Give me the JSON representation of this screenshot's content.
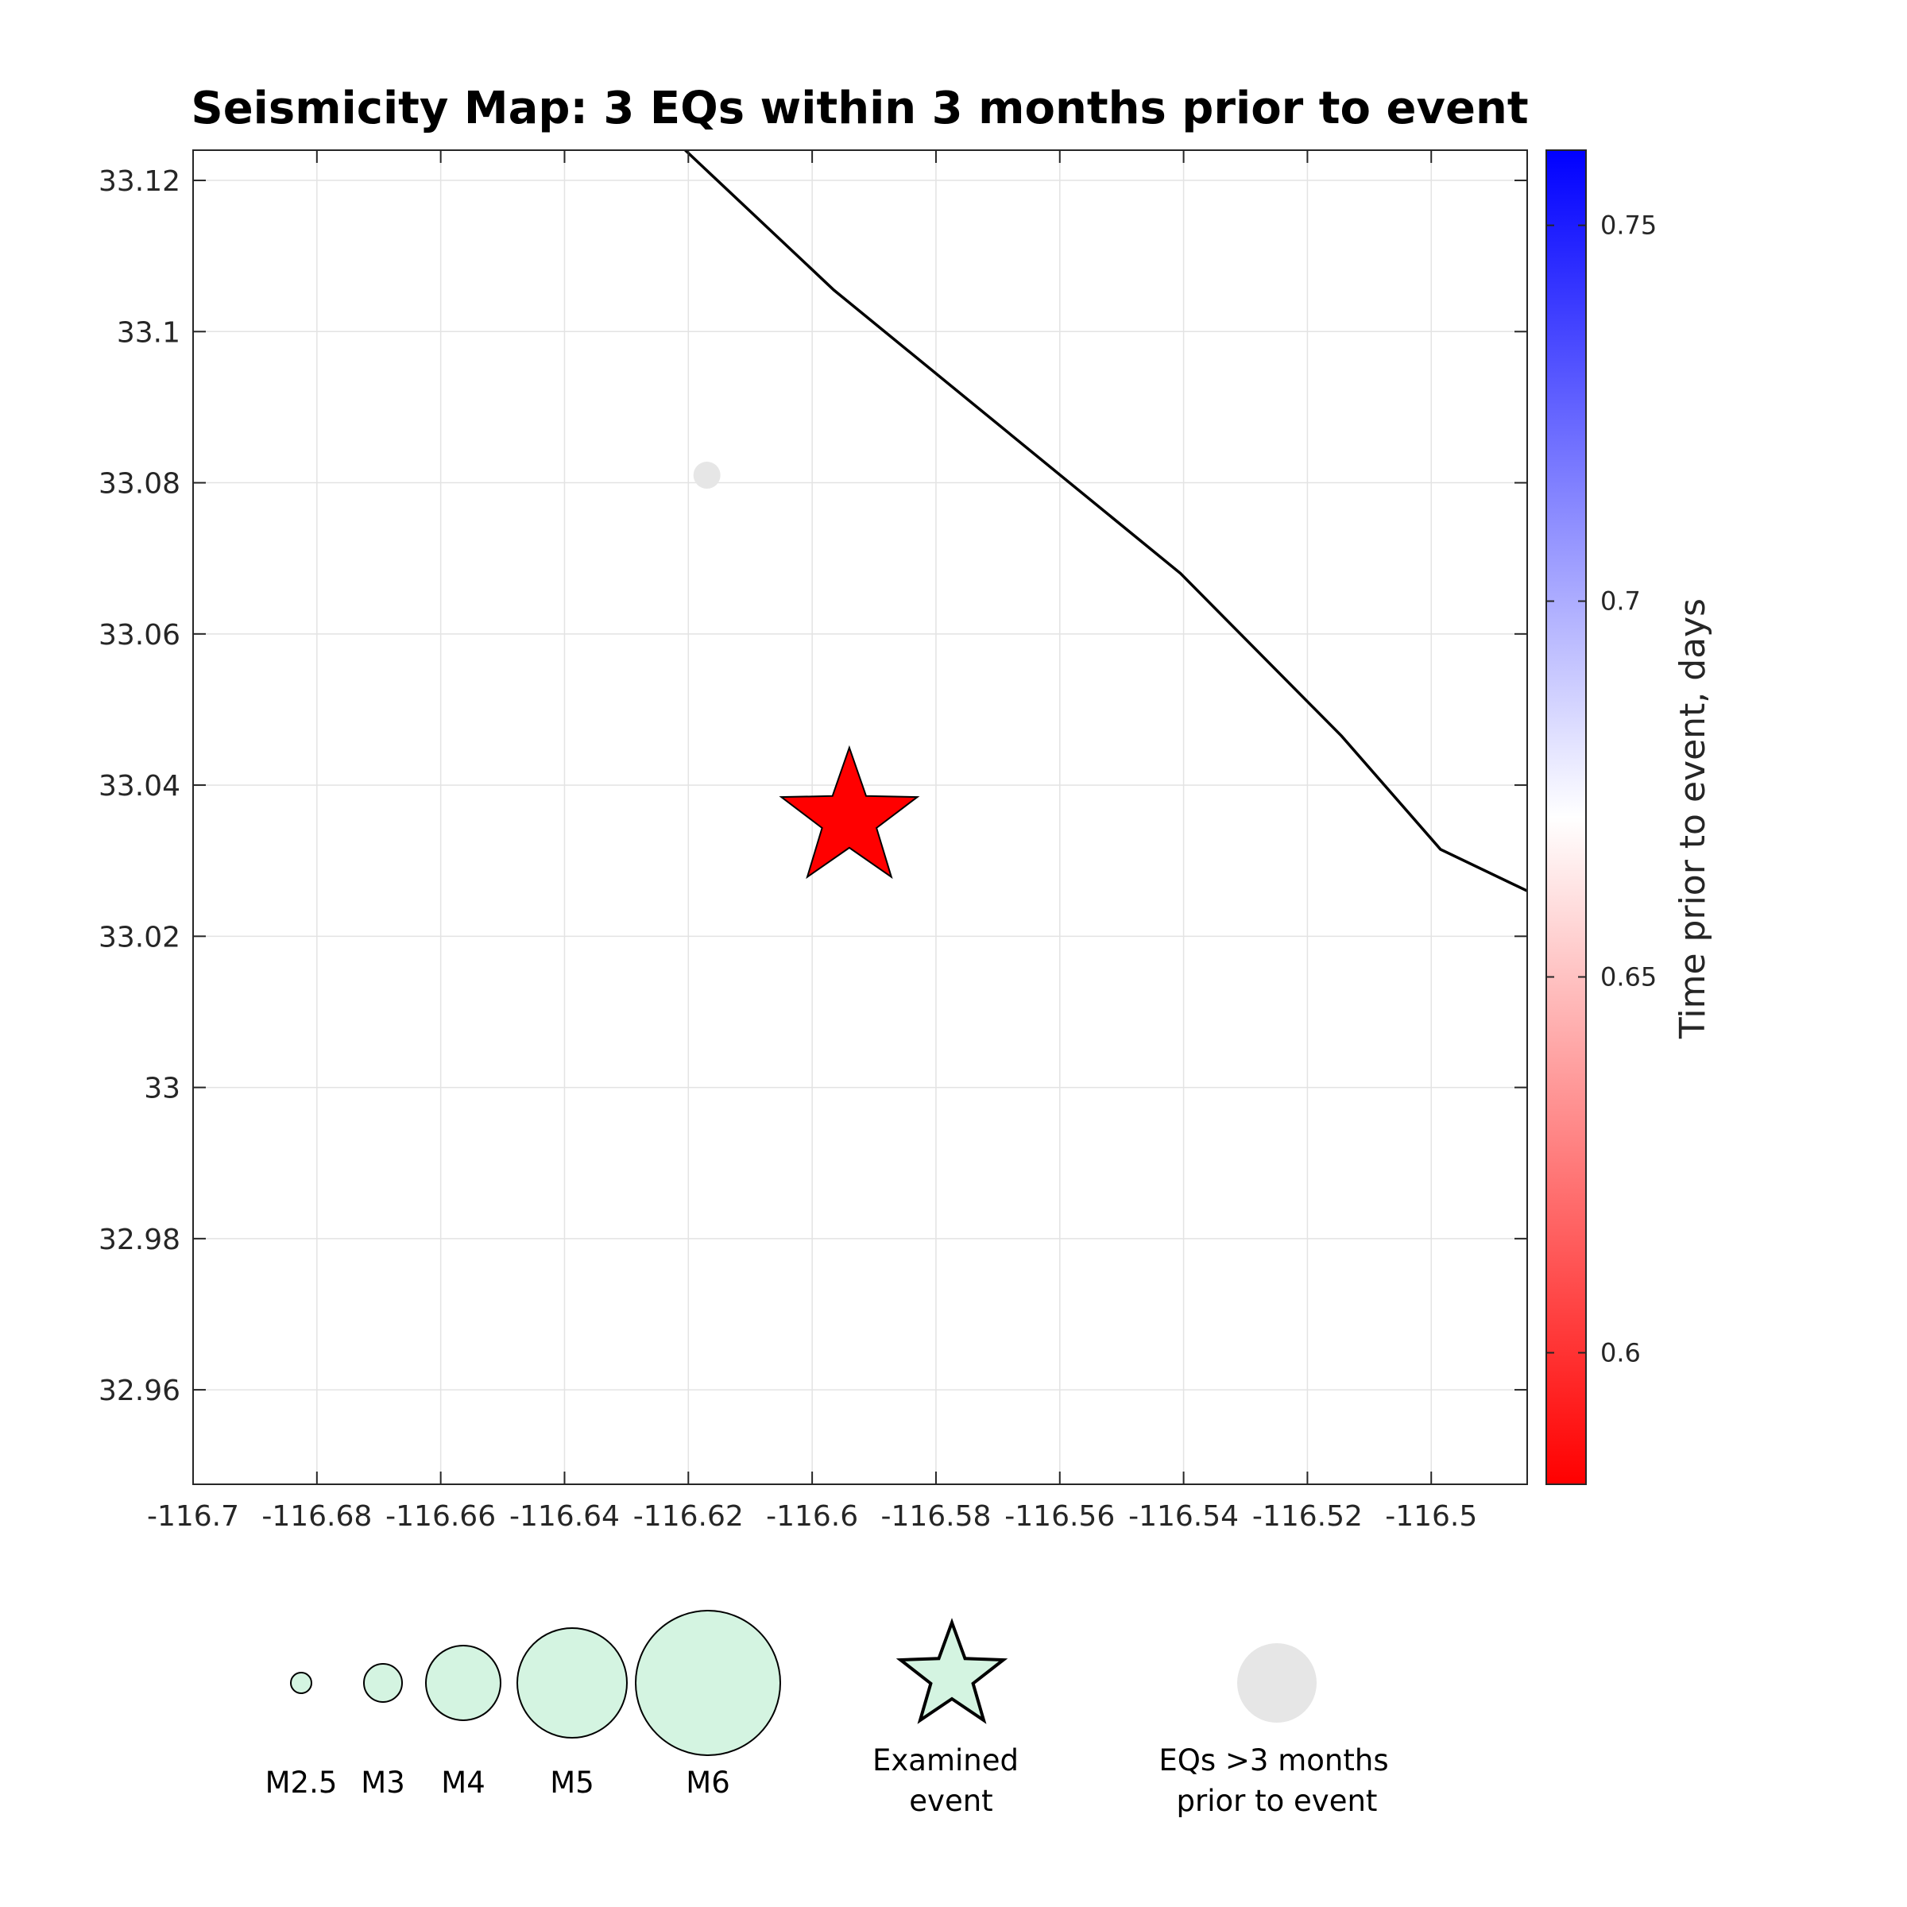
{
  "chart_data": {
    "type": "scatter",
    "title": "Seismicity Map: 3 EQs within 3 months prior to event",
    "xlabel": "",
    "ylabel": "",
    "xlim": [
      -116.7,
      -116.4845
    ],
    "ylim": [
      32.9475,
      33.124
    ],
    "xticks": [
      -116.7,
      -116.68,
      -116.66,
      -116.64,
      -116.62,
      -116.6,
      -116.58,
      -116.56,
      -116.54,
      -116.52,
      -116.5
    ],
    "xtick_labels": [
      "-116.7",
      "-116.68",
      "-116.66",
      "-116.64",
      "-116.62",
      "-116.6",
      "-116.58",
      "-116.56",
      "-116.54",
      "-116.52",
      "-116.5"
    ],
    "yticks": [
      32.96,
      32.98,
      33.0,
      33.02,
      33.04,
      33.06,
      33.08,
      33.1,
      33.12
    ],
    "ytick_labels": [
      "32.96",
      "32.98",
      "33",
      "33.02",
      "33.04",
      "33.06",
      "33.08",
      "33.1",
      "33.12"
    ],
    "grid": true,
    "fault_line": {
      "x": [
        -116.6205,
        -116.5965,
        -116.5405,
        -116.5145,
        -116.4985,
        -116.4845
      ],
      "y": [
        33.124,
        33.1055,
        33.068,
        33.0465,
        33.0315,
        33.026
      ]
    },
    "series": [
      {
        "marker": "circle",
        "points": [
          {
            "x": -116.5945,
            "y": 33.0345,
            "time_days": 0.755,
            "color": "#0a14ff"
          }
        ]
      },
      {
        "marker": "circle",
        "points": [
          {
            "x": -116.617,
            "y": 33.081,
            "color": "#e6e6e6"
          }
        ]
      },
      {
        "marker": "star",
        "points": [
          {
            "x": -116.594,
            "y": 33.0355,
            "color": "#ff0000"
          }
        ]
      }
    ],
    "colorbar": {
      "label": "Time prior to event, days",
      "range": [
        0.5825,
        0.76
      ],
      "ticks": [
        0.6,
        0.65,
        0.7,
        0.75
      ],
      "tick_labels": [
        "0.6",
        "0.65",
        "0.7",
        "0.75"
      ],
      "colors": [
        "#ff0000",
        "#ffffff",
        "#0000ff"
      ]
    },
    "legend": {
      "placement": "bottom",
      "size_items": [
        {
          "label": "M2.5"
        },
        {
          "label": "M3"
        },
        {
          "label": "M4"
        },
        {
          "label": "M5"
        },
        {
          "label": "M6"
        }
      ],
      "size_fill": "#d4f4e1",
      "examined_label_line1": "Examined",
      "examined_label_line2": "event",
      "old_label_line1": "EQs >3 months",
      "old_label_line2": "prior to event",
      "old_fill": "#e6e6e6"
    }
  }
}
